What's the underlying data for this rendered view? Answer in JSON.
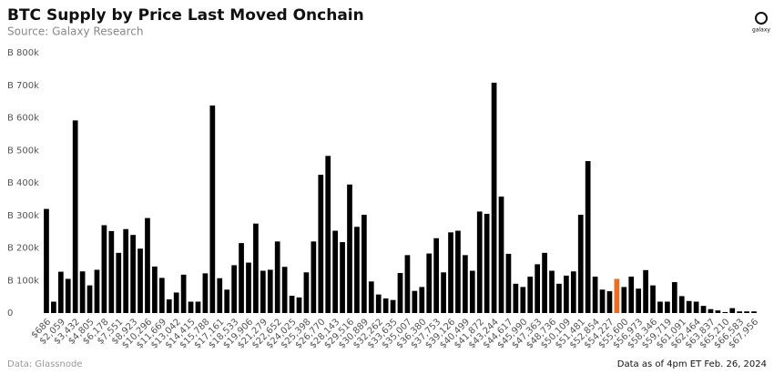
{
  "chart_data": {
    "type": "bar",
    "title": "BTC Supply by Price Last Moved Onchain",
    "subtitle": "Source: Galaxy Research",
    "source": "Data: Glassnode",
    "note": "Data as of 4pm ET Feb. 26, 2024",
    "logo": "galaxy",
    "categories": [
      "$686",
      null,
      "$2,059",
      null,
      "$3,432",
      null,
      "$4,805",
      null,
      "$6,178",
      null,
      "$7,551",
      null,
      "$8,923",
      null,
      "$10,296",
      null,
      "$11,669",
      null,
      "$13,042",
      null,
      "$14,415",
      null,
      "$15,788",
      null,
      "$17,161",
      null,
      "$18,533",
      null,
      "$19,906",
      null,
      "$21,279",
      null,
      "$22,652",
      null,
      "$24,025",
      null,
      "$25,398",
      null,
      "$26,770",
      null,
      "$28,143",
      null,
      "$29,516",
      null,
      "$30,889",
      null,
      "$32,262",
      null,
      "$33,635",
      null,
      "$35,007",
      null,
      "$36,380",
      null,
      "$37,753",
      null,
      "$39,126",
      null,
      "$40,499",
      null,
      "$41,872",
      null,
      "$43,244",
      null,
      "$44,617",
      null,
      "$45,990",
      null,
      "$47,363",
      null,
      "$48,736",
      null,
      "$50,109",
      null,
      "$51,481",
      null,
      "$52,854",
      null,
      "$54,227",
      null,
      "$55,600",
      null,
      "$56,973",
      null,
      "$58,346",
      null,
      "$59,719",
      null,
      "$61,091",
      null,
      "$62,464",
      null,
      "$63,837",
      null,
      "$65,210",
      null,
      "$66,583",
      null,
      "$67,956"
    ],
    "values": [
      320000,
      35000,
      127000,
      105000,
      592000,
      128000,
      85000,
      133000,
      270000,
      252000,
      185000,
      258000,
      240000,
      198000,
      292000,
      143000,
      108000,
      42000,
      63000,
      118000,
      35000,
      35000,
      122000,
      638000,
      107000,
      72000,
      147000,
      215000,
      155000,
      275000,
      130000,
      133000,
      220000,
      142000,
      53000,
      48000,
      125000,
      220000,
      425000,
      483000,
      253000,
      218000,
      395000,
      265000,
      302000,
      97000,
      57000,
      45000,
      40000,
      123000,
      178000,
      68000,
      80000,
      183000,
      230000,
      125000,
      248000,
      253000,
      178000,
      130000,
      312000,
      305000,
      708000,
      358000,
      182000,
      90000,
      80000,
      112000,
      150000,
      185000,
      130000,
      90000,
      115000,
      128000,
      302000,
      467000,
      112000,
      72000,
      67000,
      105000,
      80000,
      112000,
      75000,
      132000,
      85000,
      35000,
      35000,
      95000,
      52000,
      37000,
      35000,
      22000,
      12000,
      8000,
      3000,
      15000,
      5000,
      5000,
      5000
    ],
    "color": "#000000",
    "highlight": {
      "index": 79,
      "color": "#f26b1d"
    },
    "ylim": [
      0,
      800000
    ],
    "yticks": [
      {
        "value": 0,
        "label": "0"
      },
      {
        "value": 100000,
        "label": "B 100k"
      },
      {
        "value": 200000,
        "label": "B 200k"
      },
      {
        "value": 300000,
        "label": "B 300k"
      },
      {
        "value": 400000,
        "label": "B 400k"
      },
      {
        "value": 500000,
        "label": "B 500k"
      },
      {
        "value": 600000,
        "label": "B 600k"
      },
      {
        "value": 700000,
        "label": "B 700k"
      },
      {
        "value": 800000,
        "label": "B 800k"
      }
    ],
    "grid": false
  }
}
